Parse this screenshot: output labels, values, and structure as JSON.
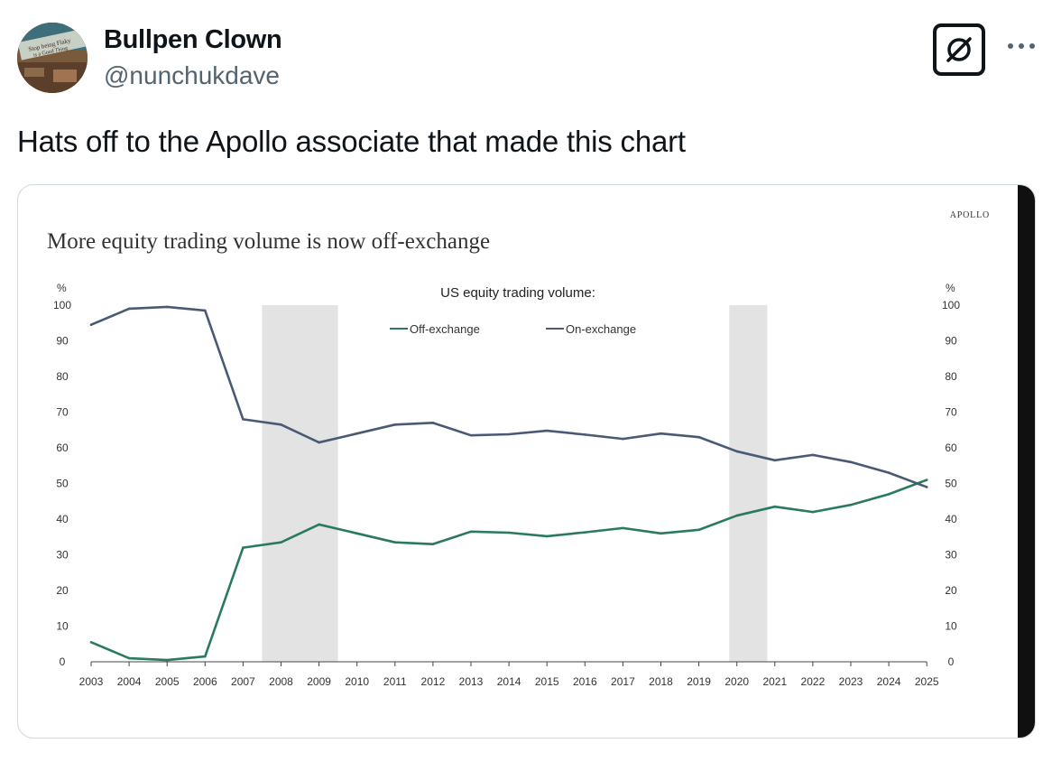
{
  "tweet": {
    "display_name": "Bullpen Clown",
    "handle": "@nunchukdave",
    "text": "Hats off to the Apollo associate that made this chart",
    "avatar_text": [
      "Stop being Flaky",
      "is a Good Thing"
    ],
    "icons": {
      "grok": "grok-slash-icon",
      "more": "more-horizontal-icon"
    }
  },
  "chart_data": {
    "type": "line",
    "title": "More equity trading volume is now off-exchange",
    "subtitle": "US equity trading volume:",
    "brand": "APOLLO",
    "ylabel_left": "%",
    "ylabel_right": "%",
    "ylim": [
      0,
      100
    ],
    "yticks": [
      "0",
      "10",
      "20",
      "30",
      "40",
      "50",
      "60",
      "70",
      "80",
      "90",
      "100"
    ],
    "x": [
      "2003",
      "2004",
      "2005",
      "2006",
      "2007",
      "2008",
      "2009",
      "2010",
      "2011",
      "2012",
      "2013",
      "2014",
      "2015",
      "2016",
      "2017",
      "2018",
      "2019",
      "2020",
      "2021",
      "2022",
      "2023",
      "2024",
      "2025"
    ],
    "series": [
      {
        "name": "Off-exchange",
        "color": "#2a7a63",
        "values": [
          5.5,
          1,
          0.5,
          1.5,
          32,
          33.5,
          38.5,
          36,
          33.5,
          33,
          36.5,
          36.2,
          35.2,
          36.3,
          37.5,
          36,
          37,
          41,
          43.5,
          42,
          44,
          47,
          51
        ]
      },
      {
        "name": "On-exchange",
        "color": "#4b5a74",
        "values": [
          94.5,
          99,
          99.5,
          98.5,
          68,
          66.5,
          61.5,
          64,
          66.5,
          67,
          63.5,
          63.8,
          64.8,
          63.7,
          62.5,
          64,
          63,
          59,
          56.5,
          58,
          56,
          53,
          49
        ]
      }
    ],
    "recessions": [
      [
        2007.5,
        2009.5
      ],
      [
        2019.8,
        2020.8
      ]
    ],
    "legend": "top-center",
    "grid": false
  }
}
